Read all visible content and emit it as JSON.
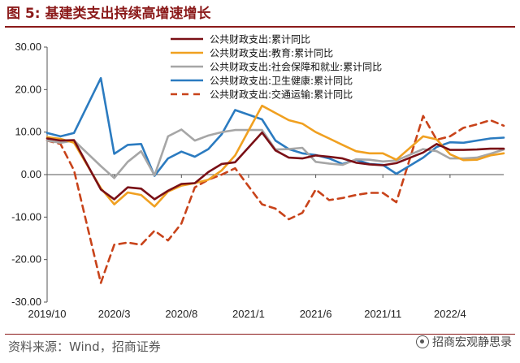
{
  "header": {
    "title": "图 5:  基建类支出持续高增速增长"
  },
  "footer": {
    "source": "资料来源：Wind，招商证券",
    "watermark": "招商宏观静思录",
    "watermark_icon": "wechat-icon"
  },
  "chart_data": {
    "type": "line",
    "title": "图 5:  基建类支出持续高增速增长",
    "xlabel": "",
    "ylabel": "",
    "ylim": [
      -30,
      30
    ],
    "yticks": [
      "30.00",
      "20.00",
      "10.00",
      "0.00",
      "-10.00",
      "-20.00",
      "-30.00"
    ],
    "x": [
      "2019/10",
      "2019/11",
      "2019/12",
      "2020/1",
      "2020/2",
      "2020/3",
      "2020/4",
      "2020/5",
      "2020/6",
      "2020/7",
      "2020/8",
      "2020/9",
      "2020/10",
      "2020/11",
      "2020/12",
      "2021/1",
      "2021/2",
      "2021/3",
      "2021/4",
      "2021/5",
      "2021/6",
      "2021/7",
      "2021/8",
      "2021/9",
      "2021/10",
      "2021/11",
      "2021/12",
      "2022/1",
      "2022/2",
      "2022/3",
      "2022/4",
      "2022/5",
      "2022/6",
      "2022/7",
      "2022/8"
    ],
    "xticks": [
      "2019/10",
      "2020/3",
      "2020/8",
      "2021/1",
      "2021/6",
      "2021/11",
      "2022/4"
    ],
    "legend_position": "top-center",
    "grid": false,
    "series": [
      {
        "name": "公共财政支出:累计同比",
        "color": "#7a1016",
        "dash": false,
        "values": [
          8.5,
          8.0,
          8.1,
          null,
          -3.5,
          -5.8,
          -3.0,
          -3.3,
          -5.8,
          -3.8,
          -2.2,
          -2.0,
          0.6,
          2.5,
          2.9,
          null,
          9.9,
          5.7,
          4.0,
          3.8,
          4.5,
          4.2,
          3.8,
          2.8,
          2.4,
          2.2,
          2.7,
          null,
          5.2,
          7.2,
          5.8,
          5.8,
          5.9,
          6.1,
          6.1
        ]
      },
      {
        "name": "公共财政支出:教育:累计同比",
        "color": "#f0a020",
        "dash": false,
        "values": [
          8.8,
          8.4,
          7.5,
          null,
          -3.2,
          -7.0,
          -4.2,
          -4.8,
          -7.5,
          -4.0,
          -2.6,
          -2.0,
          -1.2,
          1.0,
          4.5,
          null,
          16.2,
          14.5,
          12.8,
          12.0,
          10.0,
          8.5,
          7.0,
          5.5,
          5.0,
          5.0,
          3.5,
          null,
          9.0,
          8.3,
          4.8,
          3.4,
          3.5,
          4.5,
          5.0
        ]
      },
      {
        "name": "公共财政支出:社会保障和就业:累计同比",
        "color": "#a6a6a6",
        "dash": false,
        "values": [
          8.0,
          7.5,
          8.0,
          null,
          2.0,
          -0.8,
          3.0,
          5.5,
          -0.2,
          9.0,
          10.6,
          8.0,
          9.2,
          10.0,
          10.5,
          null,
          10.5,
          5.9,
          6.0,
          6.3,
          3.0,
          2.6,
          2.3,
          3.6,
          3.5,
          3.1,
          3.3,
          null,
          6.0,
          5.5,
          3.8,
          3.8,
          4.0,
          4.9,
          5.9
        ]
      },
      {
        "name": "公共财政支出:卫生健康:累计同比",
        "color": "#2b7bc0",
        "dash": false,
        "values": [
          9.8,
          9.0,
          9.8,
          null,
          22.7,
          4.9,
          7.0,
          7.2,
          -0.3,
          3.8,
          5.4,
          4.2,
          6.0,
          9.5,
          15.2,
          null,
          13.0,
          8.0,
          6.0,
          5.0,
          4.6,
          3.8,
          2.5,
          3.5,
          2.5,
          2.3,
          0.2,
          null,
          4.0,
          6.5,
          7.6,
          7.5,
          8.0,
          8.5,
          8.7
        ]
      },
      {
        "name": "公共财政支出:交通运输:累计同比",
        "color": "#c8431a",
        "dash": true,
        "values": [
          8.0,
          7.2,
          1.0,
          null,
          -25.5,
          -16.5,
          -16.0,
          -16.5,
          -13.2,
          -15.5,
          -11.5,
          -3.0,
          -1.2,
          0.0,
          1.5,
          null,
          -7.0,
          -8.0,
          -10.5,
          -9.0,
          -3.5,
          -6.0,
          -5.5,
          -4.8,
          -4.3,
          -4.3,
          -6.5,
          null,
          13.8,
          8.2,
          9.0,
          11.0,
          11.8,
          12.8,
          11.5
        ]
      }
    ]
  }
}
